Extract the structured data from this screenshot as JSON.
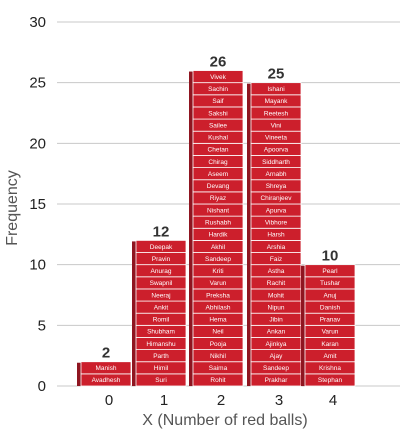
{
  "chart_data": {
    "type": "bar",
    "categories": [
      "0",
      "1",
      "2",
      "3",
      "4"
    ],
    "values": [
      2,
      12,
      26,
      25,
      10
    ],
    "data_labels": [
      "2",
      "12",
      "26",
      "25",
      "10"
    ],
    "xlabel": "X (Number of red balls)",
    "ylabel": "Frequency",
    "ylim": [
      0,
      30
    ],
    "yticks": [
      "0",
      "5",
      "10",
      "15",
      "20",
      "25",
      "30"
    ],
    "grid": true,
    "bar_color": "#cc1f2c",
    "bar_shadow_color": "#8f1520",
    "stacked_names": [
      [
        "Avadhesh",
        "Manish"
      ],
      [
        "Suri",
        "Himil",
        "Parth",
        "Himanshu",
        "Shubham",
        "Romil",
        "Ankit",
        "Neeraj",
        "Swapnil",
        "Anurag",
        "Pravin",
        "Deepak"
      ],
      [
        "Rohit",
        "Saima",
        "Nikhil",
        "Pooja",
        "Neil",
        "Hema",
        "Abhilash",
        "Preksha",
        "Varun",
        "Kriti",
        "Sandeep",
        "Akhil",
        "Hardik",
        "Rushabh",
        "Nishant",
        "Riyaz",
        "Devang",
        "Aseem",
        "Chirag",
        "Chetan",
        "Kushal",
        "Sailee",
        "Sakshi",
        "Saif",
        "Sachin",
        "Vivek"
      ],
      [
        "Prakhar",
        "Sandeep",
        "Ajay",
        "Ajinkya",
        "Ankan",
        "Jibin",
        "Nipun",
        "Mohit",
        "Rachit",
        "Astha",
        "Faiz",
        "Arshia",
        "Harsh",
        "Vibhore",
        "Apurva",
        "Chiranjeev",
        "Shreya",
        "Arnabh",
        "Siddharth",
        "Apoorva",
        "Vineeta",
        "Vini",
        "Reetesh",
        "Mayank",
        "Ishani"
      ],
      [
        "Stephan",
        "Krishna",
        "Amit",
        "Karan",
        "Varun",
        "Pranav",
        "Danish",
        "Anuj",
        "Tushar",
        "Pearl"
      ]
    ]
  }
}
